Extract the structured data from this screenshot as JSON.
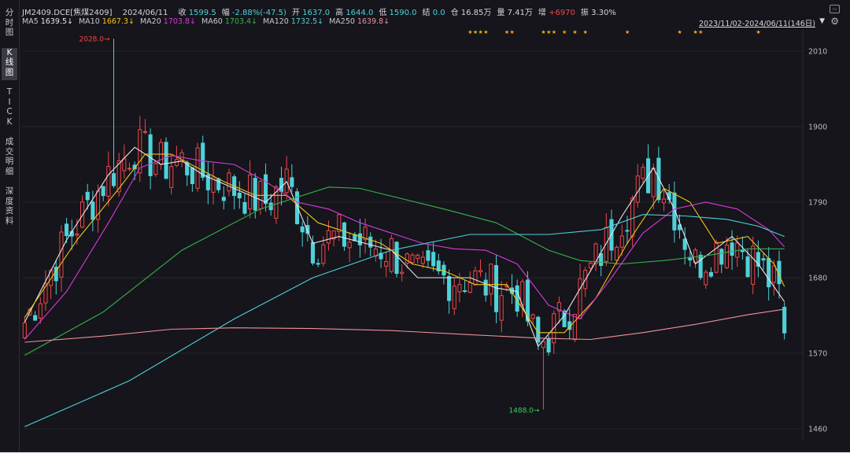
{
  "symbol": "JM2409.DCE",
  "name": "[焦煤2409]",
  "date": "2024/06/11",
  "quote": [
    {
      "label": "收",
      "value": "1599.5",
      "color": "#4fd1d9"
    },
    {
      "label": "幅",
      "value": "-2.88%(-47.5)",
      "color": "#4fd1d9"
    },
    {
      "label": "开",
      "value": "1637.0",
      "color": "#4fd1d9"
    },
    {
      "label": "高",
      "value": "1644.0",
      "color": "#4fd1d9"
    },
    {
      "label": "低",
      "value": "1590.0",
      "color": "#4fd1d9"
    },
    {
      "label": "结",
      "value": "0.0",
      "color": "#4fd1d9"
    },
    {
      "label": "仓",
      "value": "16.85万",
      "color": "#d5d5dc"
    },
    {
      "label": "量",
      "value": "7.41万",
      "color": "#d5d5dc"
    },
    {
      "label": "增",
      "value": "+6970",
      "color": "#f04848"
    },
    {
      "label": "振",
      "value": "3.30%",
      "color": "#d5d5dc"
    }
  ],
  "range_label": "2023/11/02-2024/06/11(146日)",
  "tabs": [
    {
      "label": "分时图"
    },
    {
      "label": "K线图",
      "active": true
    },
    {
      "label": "TICK"
    },
    {
      "label": "成交明细"
    },
    {
      "label": "深度资料"
    }
  ],
  "chart_data": {
    "type": "candlestick",
    "colors": {
      "up": "#f0474a",
      "down": "#4fd1d9"
    },
    "ylim": [
      1450,
      2030
    ],
    "y_ticks": [
      1460,
      1570,
      1680,
      1790,
      1900,
      2010
    ],
    "bars": 146,
    "ma": [
      {
        "name": "MA5",
        "value": "1639.5",
        "color": "#e6e6ea",
        "period": 5
      },
      {
        "name": "MA10",
        "value": "1667.3",
        "color": "#f3c11a",
        "period": 10
      },
      {
        "name": "MA20",
        "value": "1703.8",
        "color": "#d63adb",
        "period": 20
      },
      {
        "name": "MA60",
        "value": "1703.4",
        "color": "#36b34a",
        "period": 60
      },
      {
        "name": "MA120",
        "value": "1732.5",
        "color": "#4fd1d9",
        "period": 120
      },
      {
        "name": "MA250",
        "value": "1639.8",
        "color": "#f0909a",
        "period": 250
      }
    ],
    "ma_lines": {
      "MA5": [
        [
          0,
          1615
        ],
        [
          8,
          1735
        ],
        [
          16,
          1830
        ],
        [
          21,
          1870
        ],
        [
          26,
          1845
        ],
        [
          30,
          1850
        ],
        [
          34,
          1830
        ],
        [
          40,
          1810
        ],
        [
          46,
          1790
        ],
        [
          50,
          1820
        ],
        [
          55,
          1730
        ],
        [
          60,
          1740
        ],
        [
          65,
          1730
        ],
        [
          70,
          1720
        ],
        [
          75,
          1680
        ],
        [
          80,
          1680
        ],
        [
          85,
          1680
        ],
        [
          90,
          1665
        ],
        [
          94,
          1660
        ],
        [
          98,
          1580
        ],
        [
          103,
          1625
        ],
        [
          108,
          1690
        ],
        [
          114,
          1770
        ],
        [
          120,
          1840
        ],
        [
          124,
          1780
        ],
        [
          128,
          1700
        ],
        [
          135,
          1740
        ],
        [
          140,
          1700
        ],
        [
          145,
          1645
        ]
      ],
      "MA10": [
        [
          0,
          1622
        ],
        [
          10,
          1735
        ],
        [
          18,
          1810
        ],
        [
          23,
          1860
        ],
        [
          28,
          1860
        ],
        [
          33,
          1840
        ],
        [
          38,
          1820
        ],
        [
          44,
          1800
        ],
        [
          50,
          1800
        ],
        [
          56,
          1760
        ],
        [
          62,
          1745
        ],
        [
          68,
          1730
        ],
        [
          74,
          1700
        ],
        [
          80,
          1690
        ],
        [
          86,
          1670
        ],
        [
          92,
          1670
        ],
        [
          98,
          1600
        ],
        [
          103,
          1600
        ],
        [
          109,
          1650
        ],
        [
          115,
          1730
        ],
        [
          122,
          1810
        ],
        [
          127,
          1790
        ],
        [
          132,
          1730
        ],
        [
          138,
          1740
        ],
        [
          143,
          1700
        ],
        [
          145,
          1667
        ]
      ],
      "MA20": [
        [
          0,
          1590
        ],
        [
          8,
          1660
        ],
        [
          16,
          1760
        ],
        [
          22,
          1840
        ],
        [
          28,
          1858
        ],
        [
          34,
          1850
        ],
        [
          40,
          1845
        ],
        [
          46,
          1820
        ],
        [
          52,
          1790
        ],
        [
          58,
          1780
        ],
        [
          64,
          1760
        ],
        [
          70,
          1745
        ],
        [
          76,
          1730
        ],
        [
          82,
          1722
        ],
        [
          88,
          1720
        ],
        [
          94,
          1700
        ],
        [
          100,
          1640
        ],
        [
          106,
          1620
        ],
        [
          112,
          1680
        ],
        [
          118,
          1745
        ],
        [
          124,
          1780
        ],
        [
          130,
          1790
        ],
        [
          136,
          1780
        ],
        [
          142,
          1750
        ],
        [
          145,
          1725
        ]
      ],
      "MA60": [
        [
          0,
          1567
        ],
        [
          15,
          1630
        ],
        [
          30,
          1720
        ],
        [
          45,
          1780
        ],
        [
          58,
          1812
        ],
        [
          64,
          1810
        ],
        [
          72,
          1795
        ],
        [
          80,
          1780
        ],
        [
          90,
          1760
        ],
        [
          100,
          1720
        ],
        [
          106,
          1705
        ],
        [
          114,
          1700
        ],
        [
          122,
          1705
        ],
        [
          130,
          1712
        ],
        [
          138,
          1722
        ],
        [
          145,
          1722
        ]
      ],
      "MA120": [
        [
          0,
          1463
        ],
        [
          20,
          1530
        ],
        [
          40,
          1620
        ],
        [
          55,
          1680
        ],
        [
          70,
          1720
        ],
        [
          85,
          1743
        ],
        [
          100,
          1743
        ],
        [
          110,
          1750
        ],
        [
          118,
          1772
        ],
        [
          126,
          1770
        ],
        [
          134,
          1765
        ],
        [
          140,
          1755
        ],
        [
          145,
          1740
        ]
      ],
      "MA250": [
        [
          0,
          1586
        ],
        [
          15,
          1595
        ],
        [
          28,
          1605
        ],
        [
          40,
          1607
        ],
        [
          55,
          1606
        ],
        [
          70,
          1603
        ],
        [
          85,
          1597
        ],
        [
          98,
          1592
        ],
        [
          108,
          1590
        ],
        [
          118,
          1600
        ],
        [
          128,
          1612
        ],
        [
          138,
          1626
        ],
        [
          145,
          1634
        ]
      ]
    },
    "annotations": [
      {
        "text": "2028.0",
        "index": 17,
        "price": 2028.0,
        "color": "#f0474a"
      },
      {
        "text": "1488.0",
        "index": 99,
        "price": 1488.0,
        "color": "#36d35a"
      }
    ],
    "star_indices": [
      85,
      86,
      87,
      88,
      92,
      93,
      99,
      100,
      101,
      103,
      105,
      107,
      115,
      125,
      128,
      129,
      140
    ],
    "star_color": "#f3a91a"
  }
}
